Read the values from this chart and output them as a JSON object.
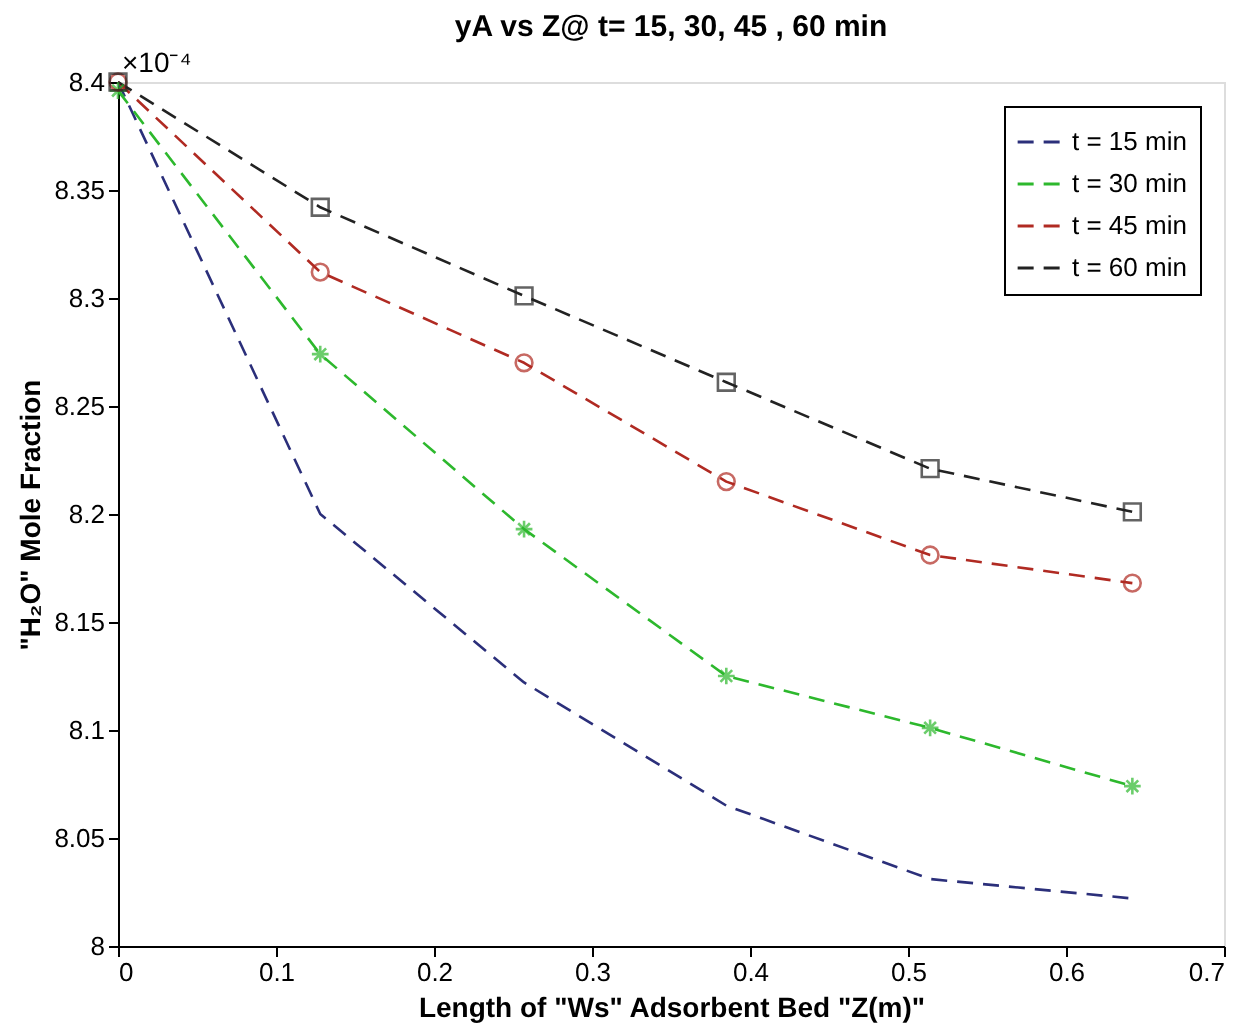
{
  "chart_data": {
    "type": "line",
    "title": "yA vs Z@ t= 15, 30, 45 , 60 min",
    "xlabel": "Length of \"Ws\" Adsorbent Bed \"Z(m)\"",
    "ylabel": "\"H₂O\" Mole Fraction",
    "annotations": [
      "×10⁻⁴"
    ],
    "x": [
      0,
      0.128,
      0.257,
      0.385,
      0.514,
      0.642
    ],
    "series": [
      {
        "name": "t = 15 min",
        "color": "#2b2f7a",
        "marker": "none",
        "values": [
          8.4,
          8.2,
          8.122,
          8.065,
          8.031,
          8.022
        ]
      },
      {
        "name": "t = 30 min",
        "color": "#2db82d",
        "marker": "cross",
        "values": [
          8.396,
          8.274,
          8.193,
          8.125,
          8.101,
          8.074
        ]
      },
      {
        "name": "t = 45 min",
        "color": "#b02a22",
        "marker": "circle",
        "values": [
          8.4,
          8.312,
          8.27,
          8.215,
          8.181,
          8.168
        ]
      },
      {
        "name": "t = 60 min",
        "color": "#222222",
        "marker": "square",
        "values": [
          8.4,
          8.342,
          8.301,
          8.261,
          8.221,
          8.201
        ]
      }
    ],
    "xlim": [
      0,
      0.7
    ],
    "xticks": [
      0,
      0.1,
      0.2,
      0.3,
      0.4,
      0.5,
      0.6,
      0.7
    ],
    "ylim": [
      8,
      8.4
    ],
    "yticks": [
      8,
      8.05,
      8.1,
      8.15,
      8.2,
      8.25,
      8.3,
      8.35,
      8.4
    ],
    "grid": false,
    "legend": "top right",
    "line_style": "dashed"
  }
}
